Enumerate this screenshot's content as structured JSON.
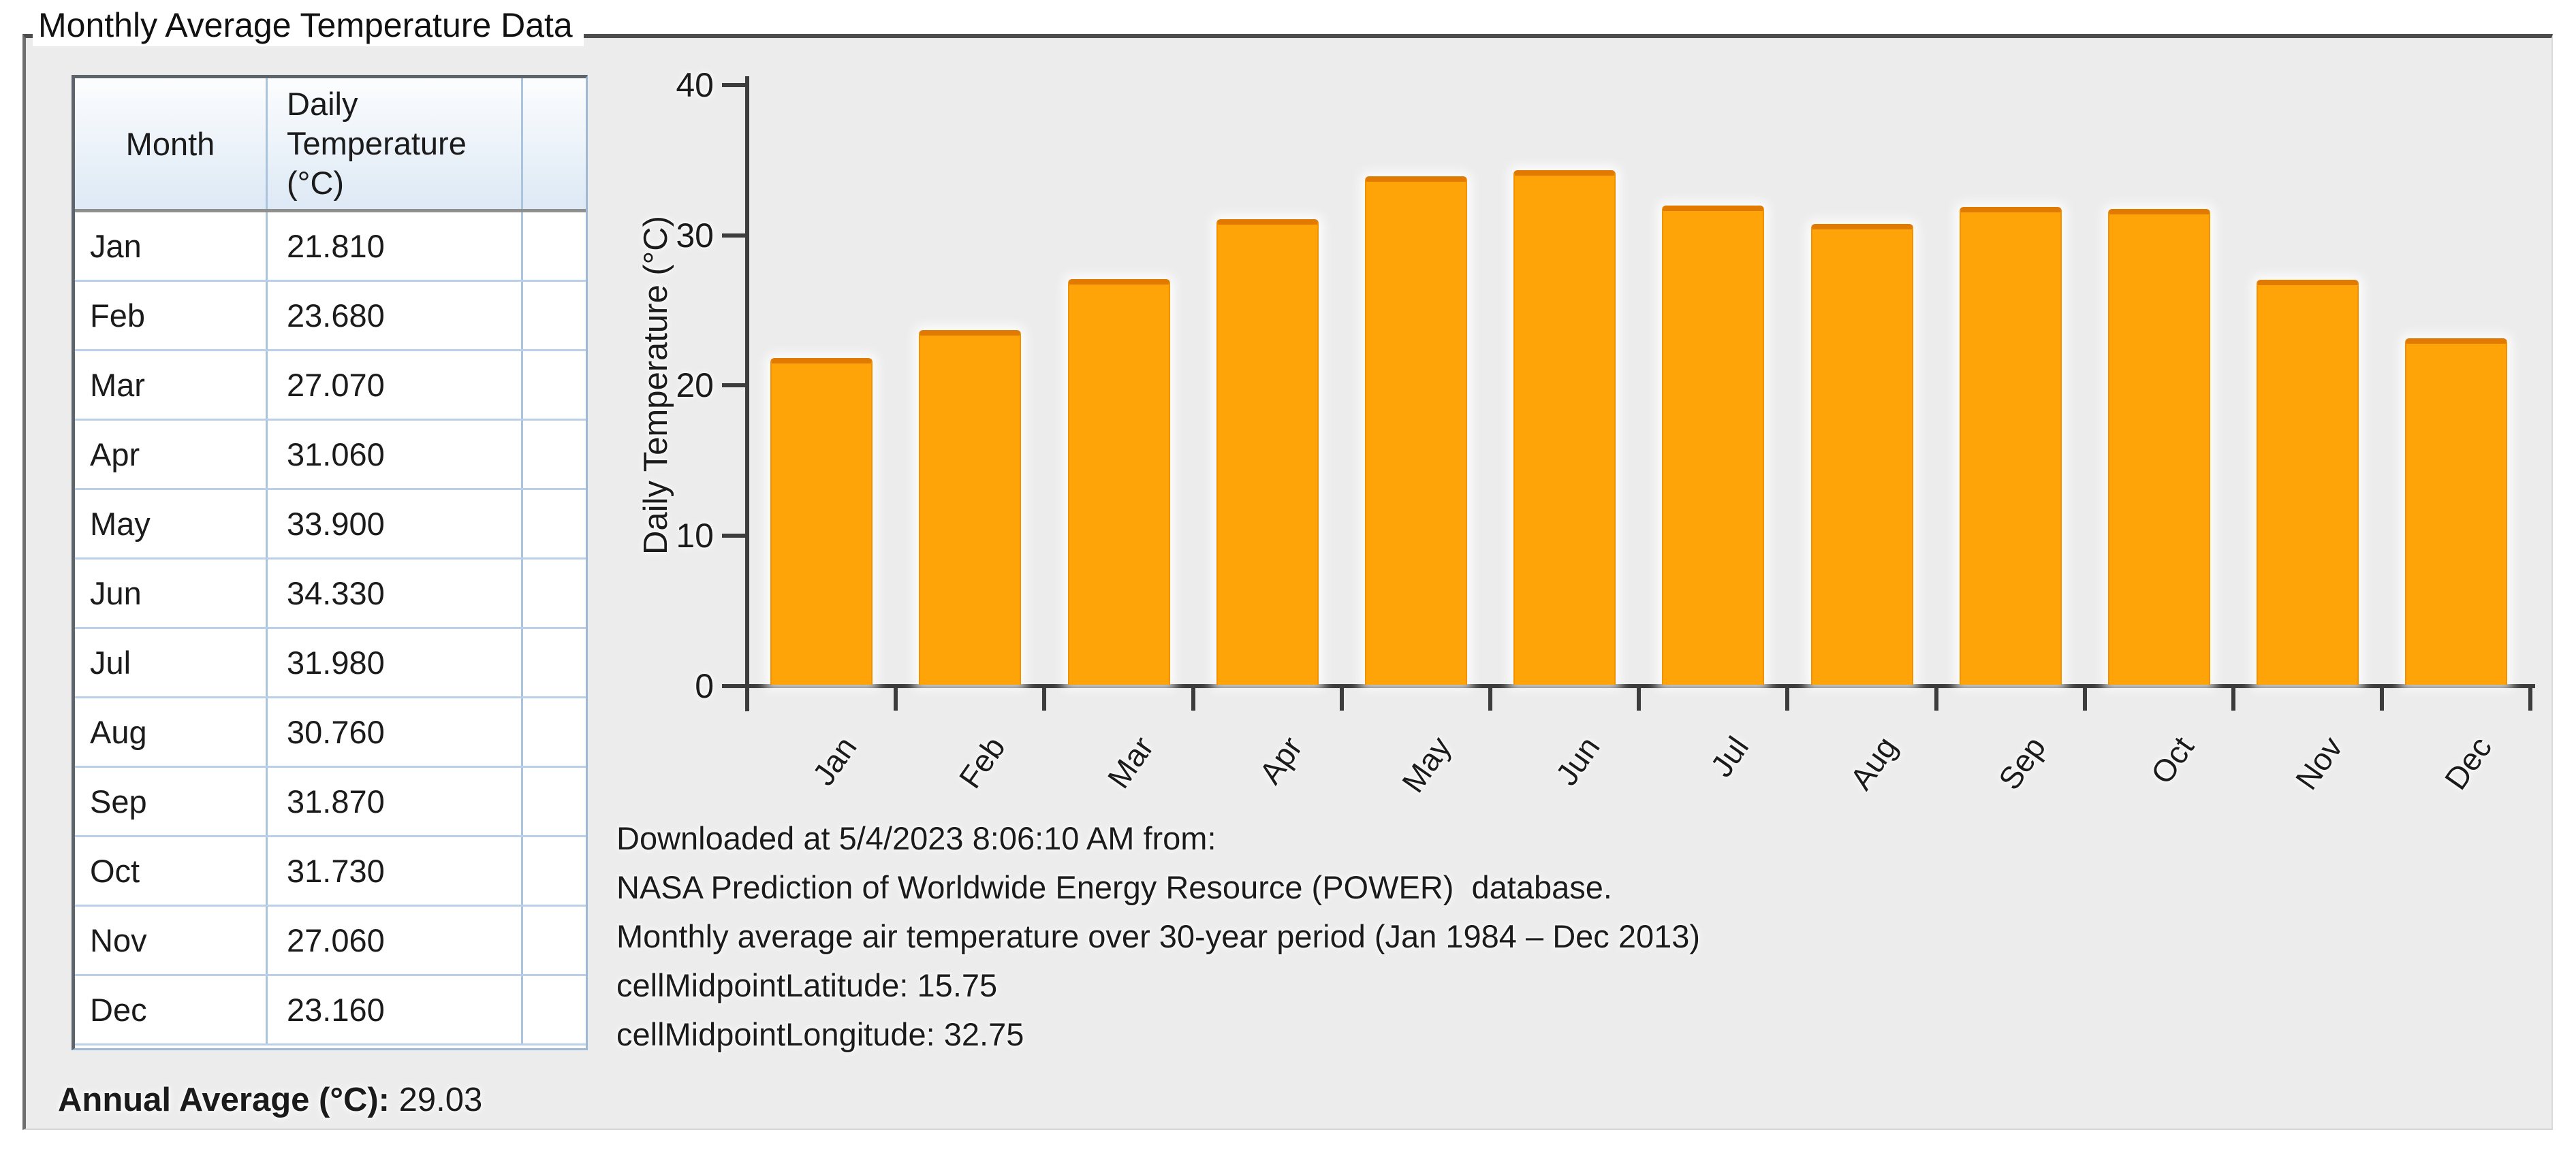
{
  "group_box": {
    "title": "Monthly Average Temperature Data"
  },
  "table": {
    "headers": {
      "month": "Month",
      "temperature": "Daily Temperature (°C)"
    },
    "rows": [
      {
        "month": "Jan",
        "value": "21.810"
      },
      {
        "month": "Feb",
        "value": "23.680"
      },
      {
        "month": "Mar",
        "value": "27.070"
      },
      {
        "month": "Apr",
        "value": "31.060"
      },
      {
        "month": "May",
        "value": "33.900"
      },
      {
        "month": "Jun",
        "value": "34.330"
      },
      {
        "month": "Jul",
        "value": "31.980"
      },
      {
        "month": "Aug",
        "value": "30.760"
      },
      {
        "month": "Sep",
        "value": "31.870"
      },
      {
        "month": "Oct",
        "value": "31.730"
      },
      {
        "month": "Nov",
        "value": "27.060"
      },
      {
        "month": "Dec",
        "value": "23.160"
      }
    ]
  },
  "annual_average": {
    "label": "Annual Average (°C):",
    "value": "29.03"
  },
  "chart_data": {
    "type": "bar",
    "categories": [
      "Jan",
      "Feb",
      "Mar",
      "Apr",
      "May",
      "Jun",
      "Jul",
      "Aug",
      "Sep",
      "Oct",
      "Nov",
      "Dec"
    ],
    "values": [
      21.81,
      23.68,
      27.07,
      31.06,
      33.9,
      34.33,
      31.98,
      30.76,
      31.87,
      31.73,
      27.06,
      23.16
    ],
    "title": "",
    "xlabel": "",
    "ylabel": "Daily Temperature (°C)",
    "ylim": [
      0,
      40
    ],
    "yticks": [
      "0",
      "10",
      "20",
      "30",
      "40"
    ],
    "grid": false,
    "legend": false,
    "bar_color": "#FFA408",
    "bar_edge_color": "#E17A00",
    "background_color": "#ECECEC"
  },
  "footer": {
    "lines": [
      "Downloaded at 5/4/2023 8:06:10 AM from:",
      "NASA Prediction of Worldwide Energy Resource (POWER)  database.",
      "Monthly average air temperature over 30-year period (Jan 1984 – Dec 2013)",
      "cellMidpointLatitude: 15.75",
      "cellMidpointLongitude: 32.75"
    ]
  }
}
